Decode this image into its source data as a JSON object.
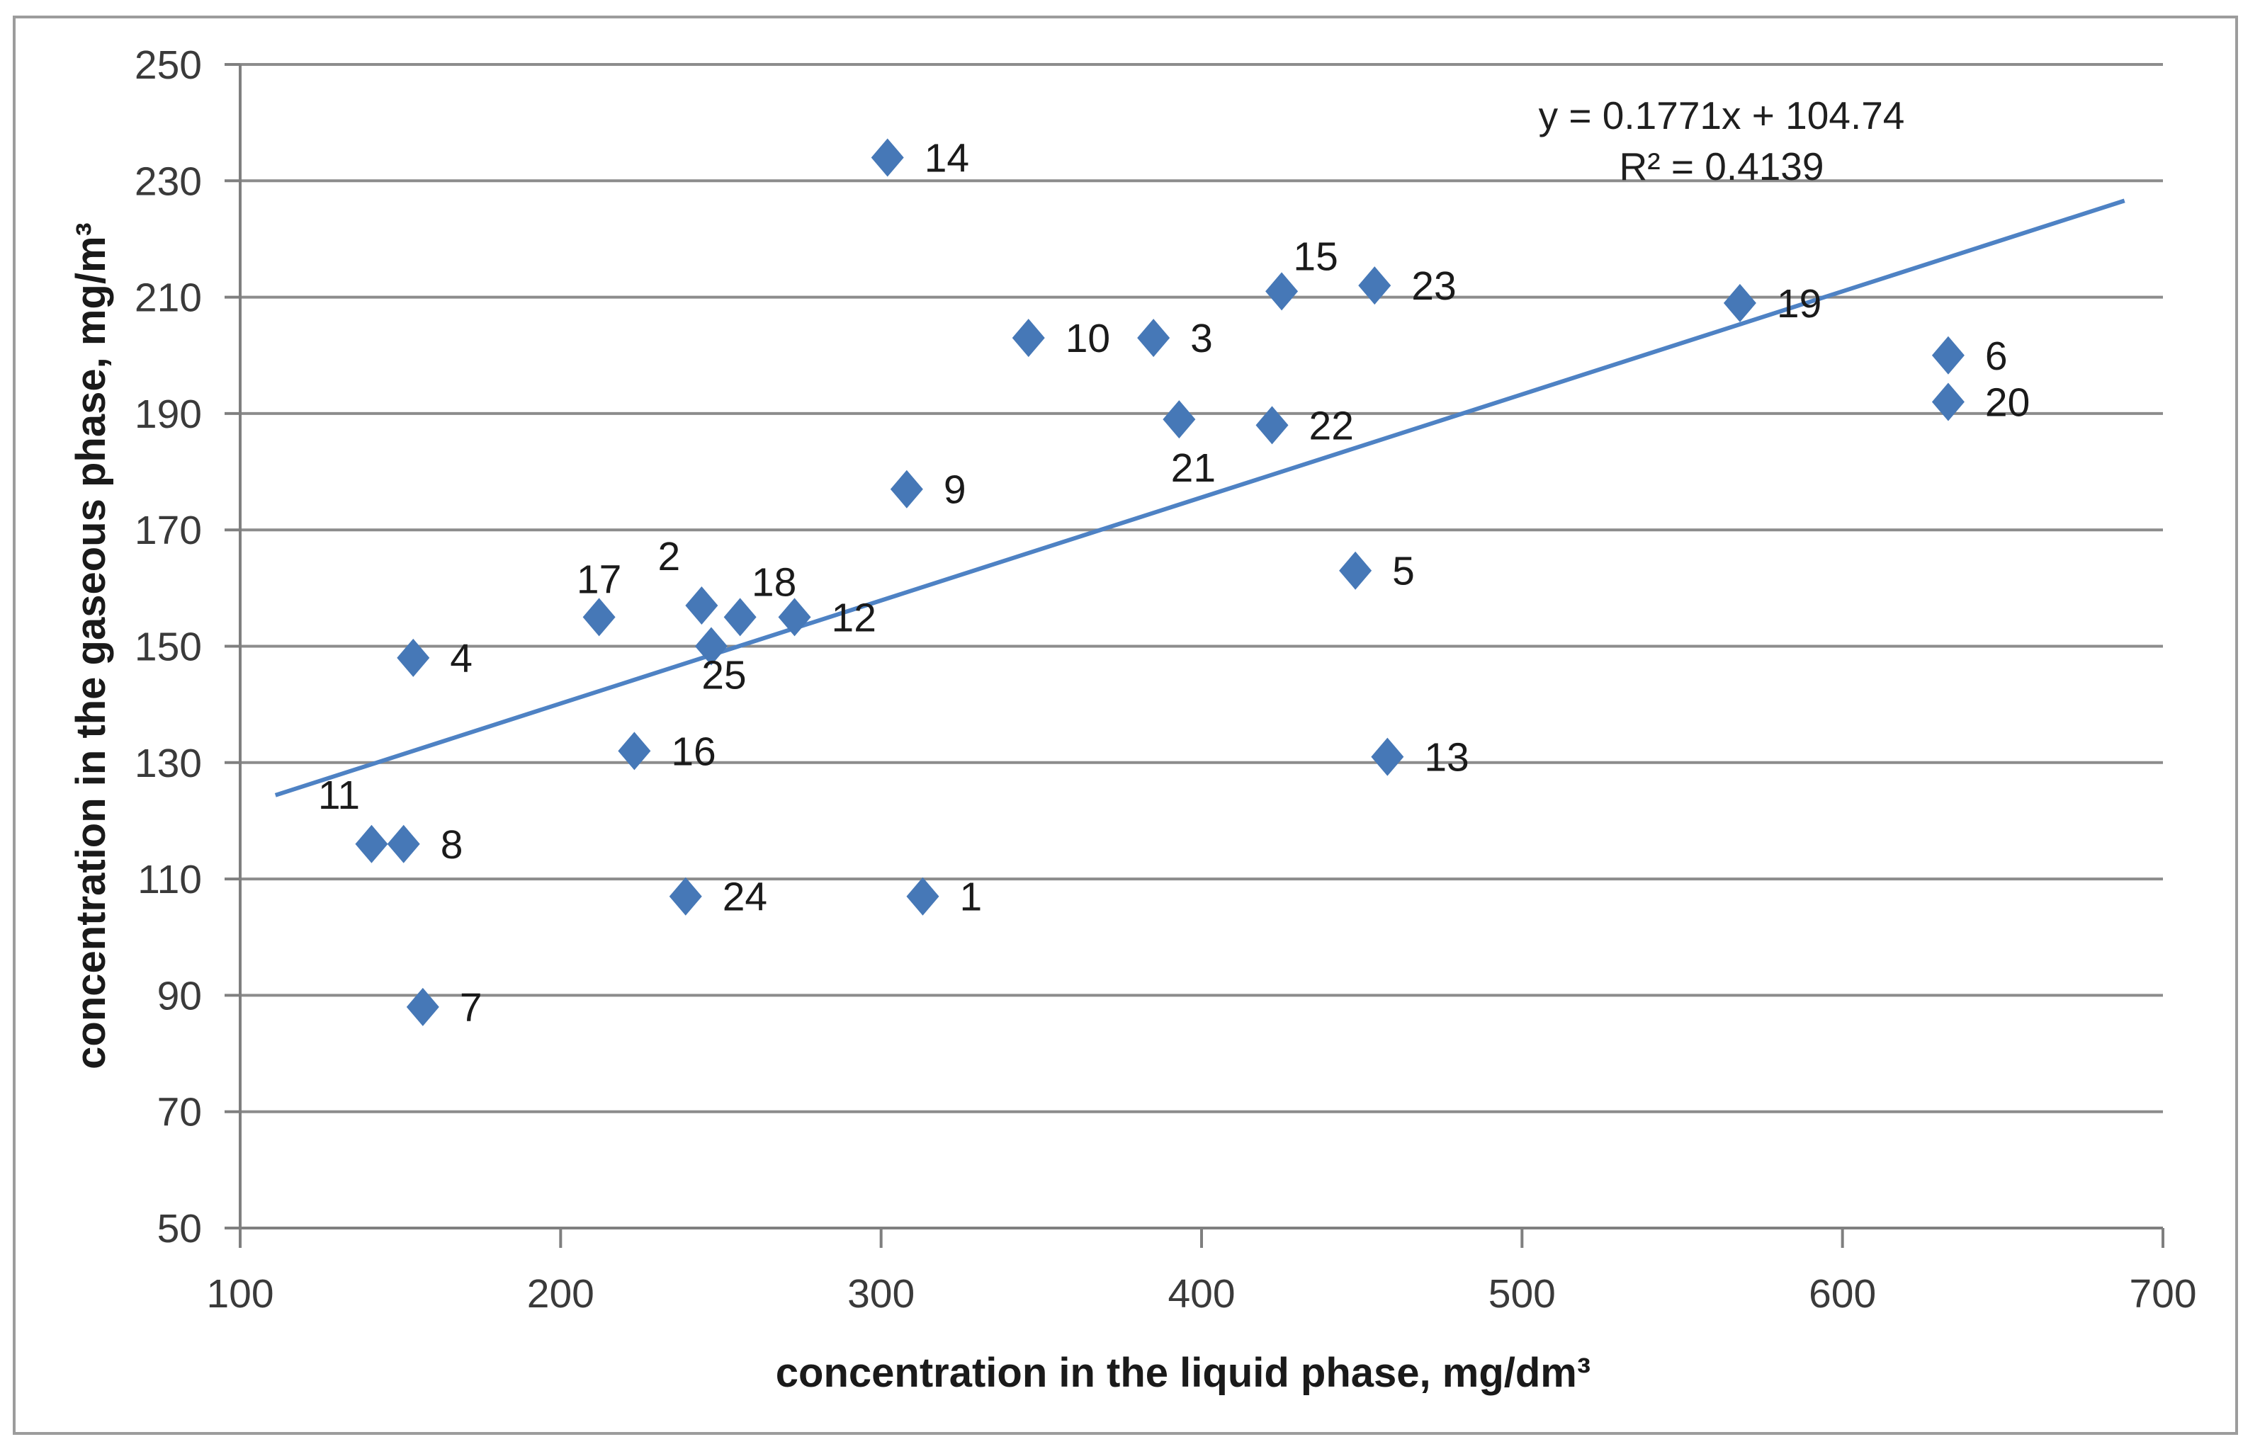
{
  "chart_data": {
    "type": "scatter",
    "title": "",
    "xlabel": "concentration in the liquid phase, mg/dm³",
    "ylabel": "concentration in the gaseous phase, mg/m³",
    "xlim": [
      100,
      700
    ],
    "ylim": [
      50,
      250
    ],
    "x_ticks": [
      100,
      200,
      300,
      400,
      500,
      600,
      700
    ],
    "y_ticks": [
      50,
      70,
      90,
      110,
      130,
      150,
      170,
      190,
      210,
      230,
      250
    ],
    "grid": "horizontal-only",
    "legend": "none",
    "marker": {
      "shape": "diamond",
      "fill": "#4678B7"
    },
    "trendline": {
      "type": "linear",
      "slope": 0.1771,
      "intercept": 104.74,
      "r2": 0.4139,
      "x_start": 111,
      "x_end": 688,
      "color": "#4E82C4",
      "equation_text": "y = 0.1771x + 104.74",
      "r2_text": "R² = 0.4139"
    },
    "points": [
      {
        "id": "1",
        "x": 313,
        "y": 107,
        "label_pos": "right"
      },
      {
        "id": "2",
        "x": 244,
        "y": 157,
        "label_pos": "above-left"
      },
      {
        "id": "3",
        "x": 385,
        "y": 203,
        "label_pos": "right"
      },
      {
        "id": "4",
        "x": 154,
        "y": 148,
        "label_pos": "right"
      },
      {
        "id": "5",
        "x": 448,
        "y": 163,
        "label_pos": "right"
      },
      {
        "id": "6",
        "x": 633,
        "y": 200,
        "label_pos": "right"
      },
      {
        "id": "7",
        "x": 157,
        "y": 88,
        "label_pos": "right"
      },
      {
        "id": "8",
        "x": 151,
        "y": 116,
        "label_pos": "right"
      },
      {
        "id": "9",
        "x": 308,
        "y": 177,
        "label_pos": "right"
      },
      {
        "id": "10",
        "x": 346,
        "y": 203,
        "label_pos": "right"
      },
      {
        "id": "11",
        "x": 141,
        "y": 116,
        "label_pos": "above-left"
      },
      {
        "id": "12",
        "x": 273,
        "y": 155,
        "label_pos": "right"
      },
      {
        "id": "13",
        "x": 458,
        "y": 131,
        "label_pos": "right"
      },
      {
        "id": "14",
        "x": 302,
        "y": 234,
        "label_pos": "right"
      },
      {
        "id": "15",
        "x": 425,
        "y": 211,
        "label_pos": "above-right"
      },
      {
        "id": "16",
        "x": 223,
        "y": 132,
        "label_pos": "right"
      },
      {
        "id": "17",
        "x": 212,
        "y": 155,
        "label_pos": "above"
      },
      {
        "id": "18",
        "x": 256,
        "y": 155,
        "label_pos": "above-right"
      },
      {
        "id": "19",
        "x": 568,
        "y": 209,
        "label_pos": "right"
      },
      {
        "id": "20",
        "x": 633,
        "y": 192,
        "label_pos": "right"
      },
      {
        "id": "21",
        "x": 393,
        "y": 189,
        "label_pos": "below"
      },
      {
        "id": "22",
        "x": 422,
        "y": 188,
        "label_pos": "right"
      },
      {
        "id": "23",
        "x": 454,
        "y": 212,
        "label_pos": "right"
      },
      {
        "id": "24",
        "x": 239,
        "y": 107,
        "label_pos": "right"
      },
      {
        "id": "25",
        "x": 247,
        "y": 150,
        "label_pos": "below-right"
      }
    ],
    "colors": {
      "gridline": "#8C8C8C",
      "axis": "#7F7F7F",
      "tick_label": "#3A3A3A",
      "point_label": "#1a1a1a",
      "marker": "#4678B7",
      "trendline": "#4E82C4",
      "figure_border": "#9C9C9C",
      "background": "#FFFFFF"
    }
  }
}
